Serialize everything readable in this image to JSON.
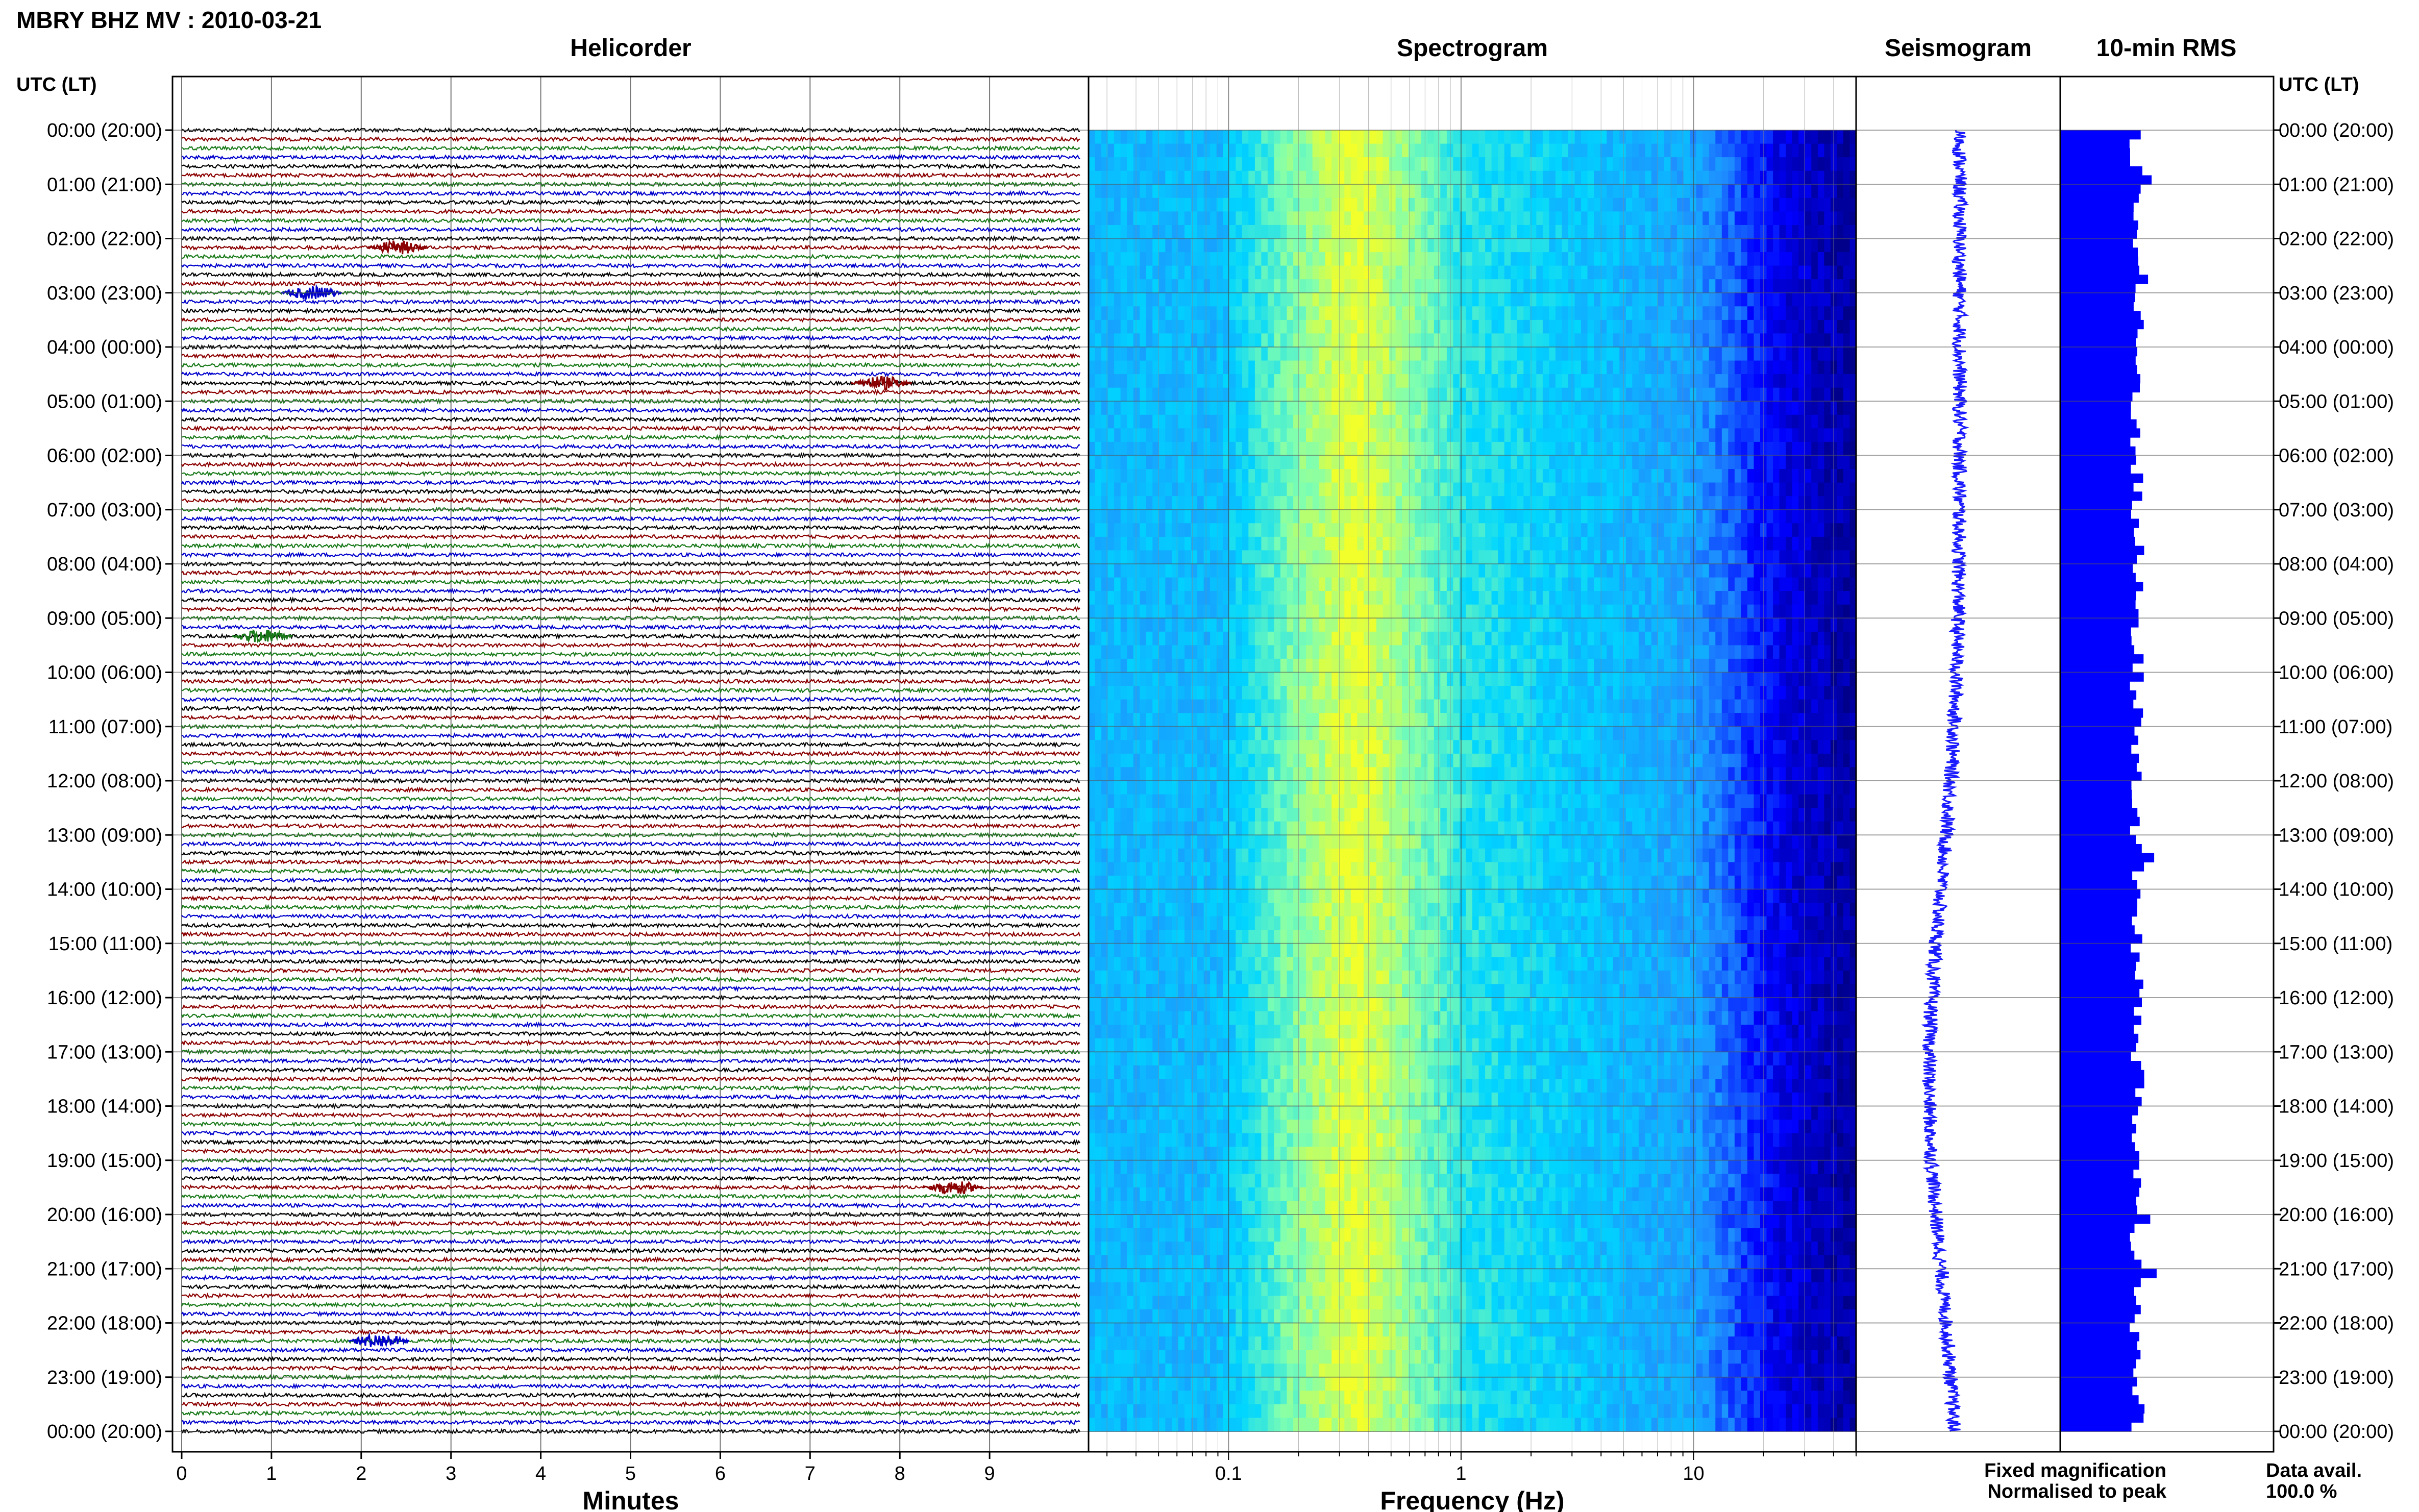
{
  "chart_data": {
    "type": "other",
    "title": "MBRY BHZ MV : 2010-03-21",
    "panels": {
      "helicorder": {
        "title": "Helicorder",
        "xlabel": "Minutes",
        "xticks": [
          "0",
          "1",
          "2",
          "3",
          "4",
          "5",
          "6",
          "7",
          "8",
          "9"
        ],
        "xlim": [
          0,
          10
        ],
        "rows_per_hour": 6,
        "trace_colors": [
          "#000000",
          "#8b0000",
          "#1a7a1a",
          "#0000cc"
        ]
      },
      "spectrogram": {
        "title": "Spectrogram",
        "xlabel": "Frequency (Hz)",
        "xscale": "log",
        "xticks": [
          "0.1",
          "1",
          "10"
        ],
        "xlim": [
          0.025,
          50
        ]
      },
      "seismogram": {
        "title": "Seismogram"
      },
      "rms": {
        "title": "10-min RMS"
      }
    },
    "time_axis": {
      "left_header": "UTC (LT)",
      "right_header": "UTC (LT)",
      "labels": [
        "00:00 (20:00)",
        "01:00 (21:00)",
        "02:00 (22:00)",
        "03:00 (23:00)",
        "04:00 (00:00)",
        "05:00 (01:00)",
        "06:00 (02:00)",
        "07:00 (03:00)",
        "08:00 (04:00)",
        "09:00 (05:00)",
        "10:00 (06:00)",
        "11:00 (07:00)",
        "12:00 (08:00)",
        "13:00 (09:00)",
        "14:00 (10:00)",
        "15:00 (11:00)",
        "16:00 (12:00)",
        "17:00 (13:00)",
        "18:00 (14:00)",
        "19:00 (15:00)",
        "20:00 (16:00)",
        "21:00 (17:00)",
        "22:00 (18:00)",
        "23:00 (19:00)",
        "00:00 (20:00)"
      ]
    },
    "legend": {
      "fixed": "Fixed magnification",
      "fixed_color": "#1010ff",
      "normalised": "Normalised to peak",
      "normalised_color": "#ee1111"
    },
    "data_availability": {
      "label": "Data avail.",
      "value": "100.0 %"
    },
    "colors": {
      "seismogram": "#1a1aff",
      "rms": "#0000ff",
      "spectrogram_colormap": [
        "#00008b",
        "#0000ff",
        "#1e90ff",
        "#00d5ff",
        "#7fffb0",
        "#f2ff2a"
      ]
    }
  }
}
